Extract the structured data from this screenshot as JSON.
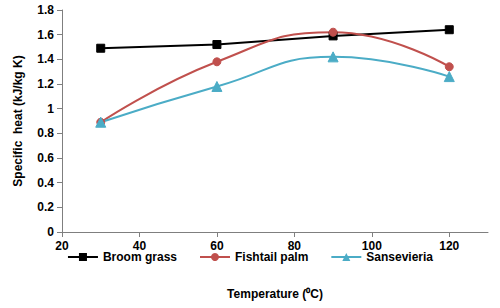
{
  "chart_data": {
    "type": "line",
    "x_label": "Temperature (⁰C)",
    "y_label": "Specific  heat (kJ/kg K)",
    "x": [
      30,
      60,
      90,
      120
    ],
    "series": [
      {
        "name": "Broom grass",
        "color": "#000000",
        "marker": "square",
        "line_style": "straight",
        "values": [
          1.49,
          1.52,
          1.59,
          1.64
        ]
      },
      {
        "name": "Fishtail palm",
        "color": "#c0504d",
        "marker": "circle",
        "line_style": "smooth",
        "values": [
          0.89,
          1.38,
          1.62,
          1.34
        ]
      },
      {
        "name": "Sansevieria",
        "color": "#4bacc6",
        "marker": "triangle",
        "line_style": "smooth",
        "values": [
          0.89,
          1.18,
          1.42,
          1.26
        ]
      }
    ],
    "xlim": [
      20,
      130
    ],
    "xticks": [
      20,
      40,
      60,
      80,
      100,
      120
    ],
    "ylim": [
      0,
      1.8
    ],
    "yticks": [
      0,
      0.2,
      0.4,
      0.6,
      0.8,
      1,
      1.2,
      1.4,
      1.6,
      1.8
    ],
    "grid": false,
    "legend": "bottom"
  }
}
